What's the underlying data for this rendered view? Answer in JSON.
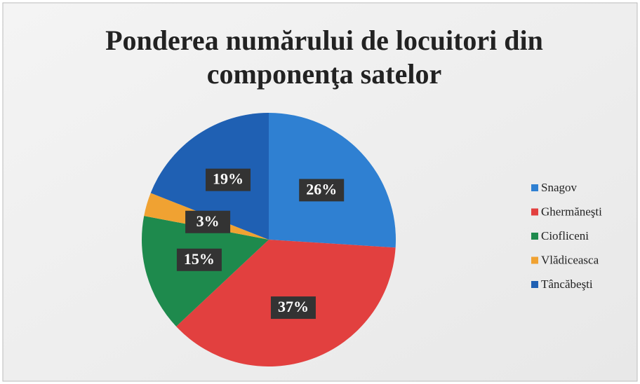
{
  "chart_data": {
    "type": "pie",
    "title": "Ponderea numărului de locuitori din componenţa satelor",
    "categories": [
      "Snagov",
      "Ghermăneşti",
      "Ciofliceni",
      "Vlădiceasca",
      "Tâncăbeşti"
    ],
    "values": [
      26,
      37,
      15,
      3,
      19
    ],
    "value_labels": [
      "26%",
      "37%",
      "15%",
      "3%",
      "19%"
    ],
    "colors": [
      "#2f80d2",
      "#e2403f",
      "#1e8a4d",
      "#f0a232",
      "#1f60b3"
    ],
    "legend": "right"
  }
}
